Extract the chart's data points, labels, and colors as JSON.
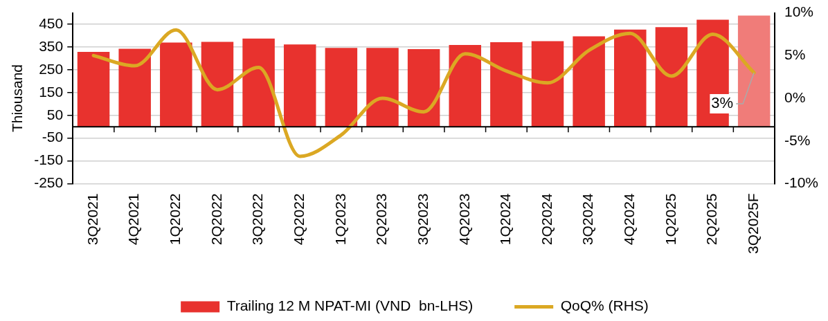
{
  "chart_data": {
    "type": "bar",
    "ylabel": "Thiousand",
    "categories": [
      "3Q2021",
      "4Q2021",
      "1Q2022",
      "2Q2022",
      "3Q2022",
      "4Q2022",
      "1Q2023",
      "2Q2023",
      "3Q2023",
      "4Q2023",
      "1Q2024",
      "2Q2024",
      "3Q2024",
      "4Q2024",
      "1Q2025",
      "2Q2025",
      "3Q2025F"
    ],
    "series": [
      {
        "name": "Trailing 12 M NPAT-MI (VND  bn-LHS)",
        "color": "#e8322e",
        "colors": [
          "#e8322e",
          "#e8322e",
          "#e8322e",
          "#e8322e",
          "#e8322e",
          "#e8322e",
          "#e8322e",
          "#e8322e",
          "#e8322e",
          "#e8322e",
          "#e8322e",
          "#e8322e",
          "#e8322e",
          "#e8322e",
          "#e8322e",
          "#e8322e",
          "#f07c79"
        ],
        "values": [
          329,
          342,
          370,
          373,
          387,
          361,
          346,
          346,
          341,
          359,
          371,
          376,
          397,
          427,
          437,
          470,
          488
        ]
      },
      {
        "name": "QoQ% (RHS)",
        "type": "line",
        "axis": "y2",
        "color": "#dba823",
        "values": [
          5.0,
          3.8,
          8.0,
          1.0,
          3.6,
          -6.8,
          -4.3,
          0.0,
          -1.6,
          5.2,
          3.2,
          1.8,
          5.6,
          7.6,
          2.6,
          7.5,
          3.0
        ],
        "value_labels": [
          null,
          null,
          null,
          null,
          null,
          null,
          null,
          null,
          null,
          null,
          null,
          null,
          null,
          null,
          null,
          null,
          "3%"
        ]
      }
    ],
    "ylim": [
      -250,
      500
    ],
    "yticks": [
      -250,
      -150,
      -50,
      50,
      150,
      250,
      350,
      450
    ],
    "y2lim": [
      -10,
      10
    ],
    "y2ticks": [
      {
        "value": -10,
        "label": "-10%"
      },
      {
        "value": -5,
        "label": "-5%"
      },
      {
        "value": 0,
        "label": "0%"
      },
      {
        "value": 5,
        "label": "5%"
      },
      {
        "value": 10,
        "label": "10%"
      }
    ],
    "grid": "y",
    "legend": "bottom",
    "marker": "none",
    "line_style": "solid"
  }
}
